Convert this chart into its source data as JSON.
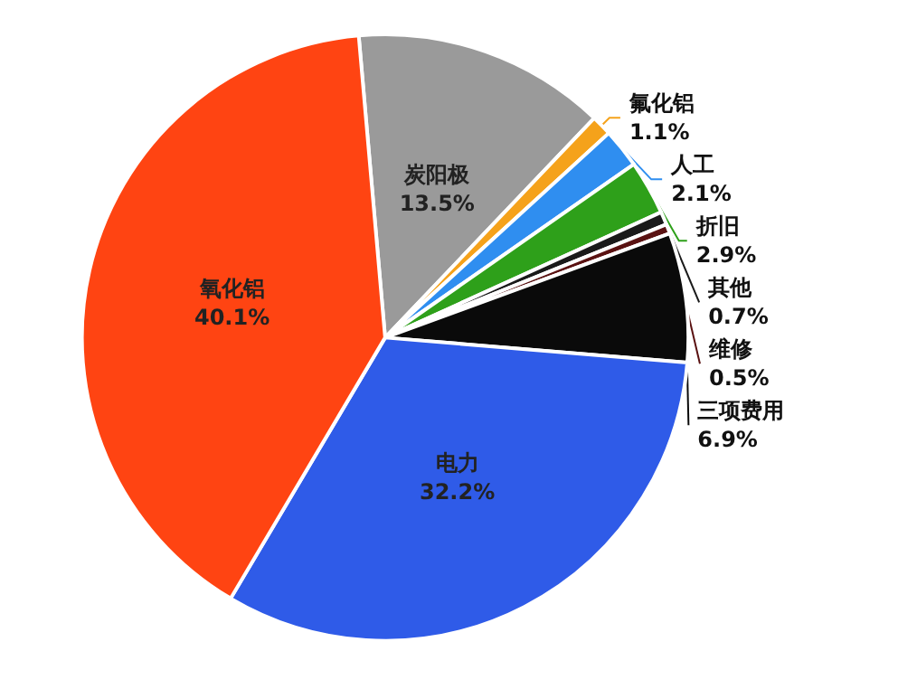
{
  "chart_data": {
    "type": "pie",
    "categories": [
      "炭阳极",
      "氟化铝",
      "人工",
      "折旧",
      "其他",
      "维修",
      "三项费用",
      "电力",
      "氧化铝"
    ],
    "values": [
      13.5,
      1.1,
      2.1,
      2.9,
      0.7,
      0.5,
      6.9,
      32.2,
      40.1
    ],
    "value_labels": [
      "13.5%",
      "1.1%",
      "2.1%",
      "2.9%",
      "0.7%",
      "0.5%",
      "6.9%",
      "32.2%",
      "40.1%"
    ],
    "colors": [
      "#9a9a9a",
      "#f5a21b",
      "#2f8ef0",
      "#2ea01a",
      "#1a1a1a",
      "#5a1212",
      "#0a0a0a",
      "#2f5be8",
      "#ff4412"
    ],
    "legend": false
  }
}
